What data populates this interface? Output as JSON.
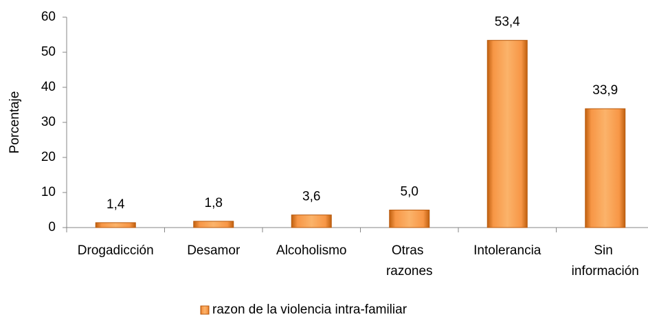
{
  "chart_data": {
    "type": "bar",
    "y_label": "Porcentaje",
    "categories": [
      "Drogadicción",
      "Desamor",
      "Alcoholismo",
      "Otras razones",
      "Intolerancia",
      "Sin información"
    ],
    "series": [
      {
        "name": "razon de la violencia intra-familiar",
        "color": "#f79646",
        "values": [
          1.4,
          1.8,
          3.6,
          5.0,
          53.4,
          33.9
        ],
        "value_labels": [
          "1,4",
          "1,8",
          "3,6",
          "5,0",
          "53,4",
          "33,9"
        ]
      }
    ],
    "ylim": [
      0,
      60
    ],
    "yticks": [
      0,
      10,
      20,
      30,
      40,
      50,
      60
    ],
    "grid": false,
    "legend": "bottom"
  }
}
